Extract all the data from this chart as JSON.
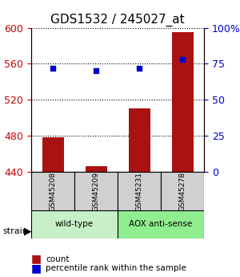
{
  "title": "GDS1532 / 245027_at",
  "samples": [
    "GSM45208",
    "GSM45209",
    "GSM45231",
    "GSM45278"
  ],
  "count_values": [
    478,
    446,
    510,
    595
  ],
  "percentile_values": [
    72,
    70,
    72,
    78
  ],
  "ylim_left": [
    440,
    600
  ],
  "ylim_right": [
    0,
    100
  ],
  "yticks_left": [
    440,
    480,
    520,
    560,
    600
  ],
  "yticks_right": [
    0,
    25,
    50,
    75,
    100
  ],
  "groups": [
    {
      "label": "wild-type",
      "samples": [
        0,
        1
      ],
      "color": "#c8f0c8"
    },
    {
      "label": "AOX anti-sense",
      "samples": [
        2,
        3
      ],
      "color": "#90ee90"
    }
  ],
  "bar_color": "#aa1111",
  "dot_color": "#0000cc",
  "bar_width": 0.5,
  "background_color": "#ffffff",
  "plot_bg_color": "#ffffff",
  "grid_color": "#000000",
  "strain_label": "strain",
  "legend_items": [
    {
      "label": "count",
      "color": "#aa1111"
    },
    {
      "label": "percentile rank within the sample",
      "color": "#0000cc"
    }
  ]
}
